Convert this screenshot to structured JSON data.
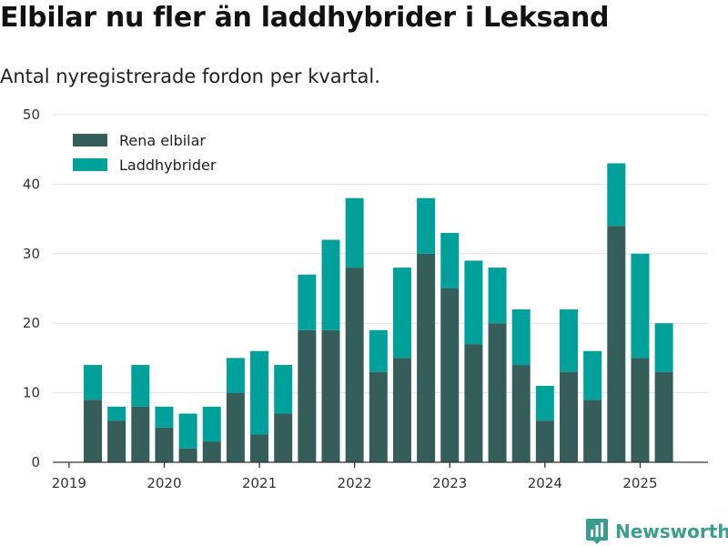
{
  "title": "Elbilar nu fler än laddhybrider i Leksand",
  "subtitle": "Antal nyregistrerade fordon per kvartal.",
  "brand": {
    "name": "Newsworthy",
    "color": "#3a9e8f",
    "icon": "bar-chart-logo-icon"
  },
  "colors": {
    "elbilar": "#355e5a",
    "laddhybrider": "#00a19a",
    "grid": "#e3e3e3",
    "axis": "#333333"
  },
  "chart_data": {
    "type": "bar",
    "stacked": true,
    "x_ticks": [
      "2019",
      "2020",
      "2021",
      "2022",
      "2023",
      "2024",
      "2025"
    ],
    "ylim": [
      0,
      50
    ],
    "y_ticks": [
      0,
      10,
      20,
      30,
      40,
      50
    ],
    "grid": true,
    "legend_position": "top-left",
    "categories": [
      "2019 Q2",
      "2019 Q3",
      "2019 Q4",
      "2020 Q1",
      "2020 Q2",
      "2020 Q3",
      "2020 Q4",
      "2021 Q1",
      "2021 Q2",
      "2021 Q3",
      "2021 Q4",
      "2022 Q1",
      "2022 Q2",
      "2022 Q3",
      "2022 Q4",
      "2023 Q1",
      "2023 Q2",
      "2023 Q3",
      "2023 Q4",
      "2024 Q1",
      "2024 Q2",
      "2024 Q3",
      "2024 Q4",
      "2025 Q1",
      "2025 Q2"
    ],
    "series": [
      {
        "name": "Rena elbilar",
        "color": "#355e5a",
        "values": [
          9,
          6,
          8,
          5,
          2,
          3,
          10,
          4,
          7,
          19,
          19,
          28,
          13,
          15,
          30,
          25,
          17,
          20,
          14,
          6,
          13,
          9,
          34,
          15,
          13
        ]
      },
      {
        "name": "Laddhybrider",
        "color": "#00a19a",
        "values": [
          5,
          2,
          6,
          3,
          5,
          5,
          5,
          12,
          7,
          8,
          13,
          10,
          6,
          13,
          8,
          8,
          12,
          8,
          8,
          5,
          9,
          7,
          9,
          15,
          7
        ]
      }
    ]
  }
}
